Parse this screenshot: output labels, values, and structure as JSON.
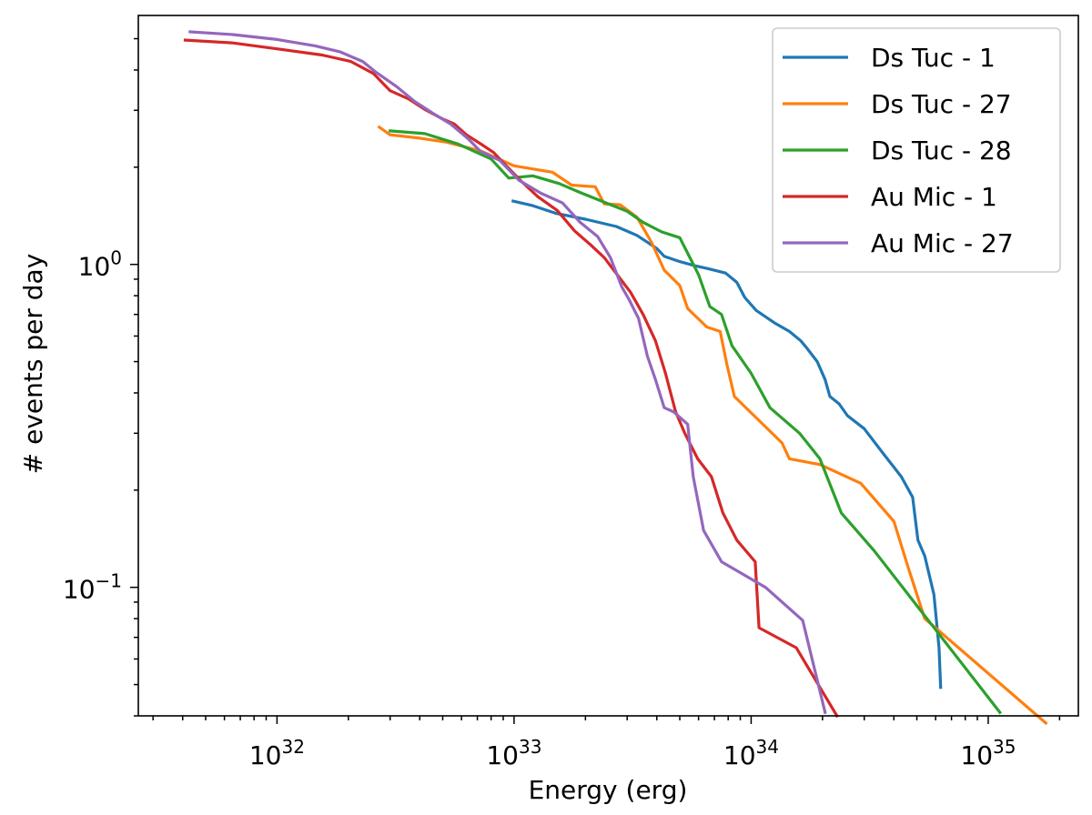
{
  "chart_data": {
    "type": "line",
    "title": "",
    "xlabel": "Energy (erg)",
    "ylabel": "# events per day",
    "xscale": "log",
    "yscale": "log",
    "xlim": [
      2.6e+31,
      2.4e+35
    ],
    "ylim": [
      0.04,
      5.9
    ],
    "x_tick_labels": [
      {
        "value": 1e+32,
        "base": "10",
        "exp": "32"
      },
      {
        "value": 1e+33,
        "base": "10",
        "exp": "33"
      },
      {
        "value": 1e+34,
        "base": "10",
        "exp": "34"
      },
      {
        "value": 1e+35,
        "base": "10",
        "exp": "35"
      }
    ],
    "y_tick_labels": [
      {
        "value": 1,
        "base": "10",
        "exp": "0"
      },
      {
        "value": 0.1,
        "base": "10",
        "exp": "−1"
      }
    ],
    "grid": false,
    "legend_position": "top-right",
    "series": [
      {
        "name": "Ds Tuc - 1",
        "color": "#1f77b4",
        "points": [
          [
            9.9e+32,
            1.57
          ],
          [
            1.2e+33,
            1.52
          ],
          [
            1.5e+33,
            1.44
          ],
          [
            2e+33,
            1.38
          ],
          [
            2.7e+33,
            1.31
          ],
          [
            3.3e+33,
            1.23
          ],
          [
            4e+33,
            1.12
          ],
          [
            4.3e+33,
            1.06
          ],
          [
            5e+33,
            1.02
          ],
          [
            5.8e+33,
            0.99
          ],
          [
            6.6e+33,
            0.97
          ],
          [
            7.8e+33,
            0.94
          ],
          [
            8.7e+33,
            0.88
          ],
          [
            9.4e+33,
            0.79
          ],
          [
            1.05e+34,
            0.72
          ],
          [
            1.25e+34,
            0.66
          ],
          [
            1.45e+34,
            0.62
          ],
          [
            1.62e+34,
            0.58
          ],
          [
            1.72e+34,
            0.55
          ],
          [
            1.9e+34,
            0.5
          ],
          [
            2.05e+34,
            0.44
          ],
          [
            2.15e+34,
            0.39
          ],
          [
            2.35e+34,
            0.37
          ],
          [
            2.55e+34,
            0.34
          ],
          [
            3e+34,
            0.31
          ],
          [
            3.6e+34,
            0.26
          ],
          [
            4.3e+34,
            0.22
          ],
          [
            4.8e+34,
            0.19
          ],
          [
            5.05e+34,
            0.14
          ],
          [
            5.4e+34,
            0.125
          ],
          [
            5.9e+34,
            0.095
          ],
          [
            6.2e+34,
            0.065
          ],
          [
            6.3e+34,
            0.049
          ]
        ]
      },
      {
        "name": "Ds Tuc - 27",
        "color": "#ff7f0e",
        "points": [
          [
            2.7e+32,
            2.66
          ],
          [
            3e+32,
            2.52
          ],
          [
            4e+32,
            2.46
          ],
          [
            5.2e+32,
            2.39
          ],
          [
            7.3e+32,
            2.24
          ],
          [
            1e+33,
            2.02
          ],
          [
            1.45e+33,
            1.93
          ],
          [
            1.75e+33,
            1.76
          ],
          [
            2.2e+33,
            1.74
          ],
          [
            2.4e+33,
            1.54
          ],
          [
            2.8e+33,
            1.53
          ],
          [
            3.3e+33,
            1.4
          ],
          [
            3.8e+33,
            1.17
          ],
          [
            4.3e+33,
            0.96
          ],
          [
            5e+33,
            0.86
          ],
          [
            5.4e+33,
            0.73
          ],
          [
            6.5e+33,
            0.64
          ],
          [
            7.4e+33,
            0.62
          ],
          [
            7.9e+33,
            0.49
          ],
          [
            8.5e+33,
            0.39
          ],
          [
            1.12e+34,
            0.32
          ],
          [
            1.35e+34,
            0.28
          ],
          [
            1.45e+34,
            0.25
          ],
          [
            1.95e+34,
            0.24
          ],
          [
            2.9e+34,
            0.21
          ],
          [
            4e+34,
            0.16
          ],
          [
            4.6e+34,
            0.115
          ],
          [
            5.4e+34,
            0.08
          ],
          [
            1.75e+35,
            0.038
          ]
        ]
      },
      {
        "name": "Ds Tuc - 28",
        "color": "#2ca02c",
        "points": [
          [
            3e+32,
            2.59
          ],
          [
            4.2e+32,
            2.54
          ],
          [
            5.8e+32,
            2.36
          ],
          [
            8e+32,
            2.12
          ],
          [
            9.5e+32,
            1.85
          ],
          [
            1.2e+33,
            1.88
          ],
          [
            1.55e+33,
            1.78
          ],
          [
            1.9e+33,
            1.67
          ],
          [
            2.5e+33,
            1.54
          ],
          [
            3e+33,
            1.46
          ],
          [
            3.5e+33,
            1.35
          ],
          [
            4.2e+33,
            1.26
          ],
          [
            5e+33,
            1.21
          ],
          [
            6e+33,
            0.93
          ],
          [
            6.7e+33,
            0.74
          ],
          [
            7.5e+33,
            0.7
          ],
          [
            8.3e+33,
            0.56
          ],
          [
            1e+34,
            0.46
          ],
          [
            1.2e+34,
            0.36
          ],
          [
            1.6e+34,
            0.3
          ],
          [
            1.95e+34,
            0.25
          ],
          [
            2.4e+34,
            0.17
          ],
          [
            3.3e+34,
            0.13
          ],
          [
            1.12e+35,
            0.041
          ]
        ]
      },
      {
        "name": "Au Mic - 1",
        "color": "#d62728",
        "points": [
          [
            4.1e+31,
            4.95
          ],
          [
            6.5e+31,
            4.85
          ],
          [
            1e+32,
            4.65
          ],
          [
            1.55e+32,
            4.45
          ],
          [
            2.05e+32,
            4.25
          ],
          [
            2.55e+32,
            3.9
          ],
          [
            3e+32,
            3.45
          ],
          [
            3.6e+32,
            3.25
          ],
          [
            4.2e+32,
            3.02
          ],
          [
            5e+32,
            2.82
          ],
          [
            5.6e+32,
            2.72
          ],
          [
            6.3e+32,
            2.52
          ],
          [
            7.3e+32,
            2.35
          ],
          [
            8.2e+32,
            2.22
          ],
          [
            9.2e+32,
            2.03
          ],
          [
            1.08e+33,
            1.8
          ],
          [
            1.26e+33,
            1.62
          ],
          [
            1.52e+33,
            1.47
          ],
          [
            1.8e+33,
            1.27
          ],
          [
            2.1e+33,
            1.15
          ],
          [
            2.4e+33,
            1.05
          ],
          [
            2.75e+33,
            0.92
          ],
          [
            3.1e+33,
            0.82
          ],
          [
            3.5e+33,
            0.7
          ],
          [
            3.95e+33,
            0.58
          ],
          [
            4.35e+33,
            0.46
          ],
          [
            4.8e+33,
            0.35
          ],
          [
            5.25e+33,
            0.3
          ],
          [
            5.95e+33,
            0.25
          ],
          [
            6.8e+33,
            0.22
          ],
          [
            7.6e+33,
            0.17
          ],
          [
            8.7e+33,
            0.14
          ],
          [
            1.04e+34,
            0.12
          ],
          [
            1.08e+34,
            0.075
          ],
          [
            1.55e+34,
            0.065
          ],
          [
            2.3e+34,
            0.04
          ]
        ]
      },
      {
        "name": "Au Mic - 27",
        "color": "#9467bd",
        "points": [
          [
            4.3e+31,
            5.25
          ],
          [
            6.5e+31,
            5.15
          ],
          [
            1e+32,
            4.97
          ],
          [
            1.45e+32,
            4.75
          ],
          [
            1.85e+32,
            4.55
          ],
          [
            2.3e+32,
            4.25
          ],
          [
            2.6e+32,
            3.95
          ],
          [
            3.2e+32,
            3.55
          ],
          [
            3.8e+32,
            3.2
          ],
          [
            4.5e+32,
            2.95
          ],
          [
            5.4e+32,
            2.72
          ],
          [
            6.4e+32,
            2.45
          ],
          [
            7.2e+32,
            2.24
          ],
          [
            8.7e+32,
            2.1
          ],
          [
            1.05e+33,
            1.82
          ],
          [
            1.3e+33,
            1.66
          ],
          [
            1.6e+33,
            1.55
          ],
          [
            1.9e+33,
            1.35
          ],
          [
            2.25e+33,
            1.22
          ],
          [
            2.55e+33,
            1.05
          ],
          [
            2.85e+33,
            0.85
          ],
          [
            3.05e+33,
            0.78
          ],
          [
            3.35e+33,
            0.68
          ],
          [
            3.65e+33,
            0.52
          ],
          [
            3.95e+33,
            0.44
          ],
          [
            4.3e+33,
            0.36
          ],
          [
            4.7e+33,
            0.35
          ],
          [
            5.4e+33,
            0.32
          ],
          [
            5.7e+33,
            0.22
          ],
          [
            6.3e+33,
            0.15
          ],
          [
            7.5e+33,
            0.12
          ],
          [
            1.15e+34,
            0.1
          ],
          [
            1.65e+34,
            0.079
          ],
          [
            2.05e+34,
            0.041
          ]
        ]
      }
    ]
  }
}
